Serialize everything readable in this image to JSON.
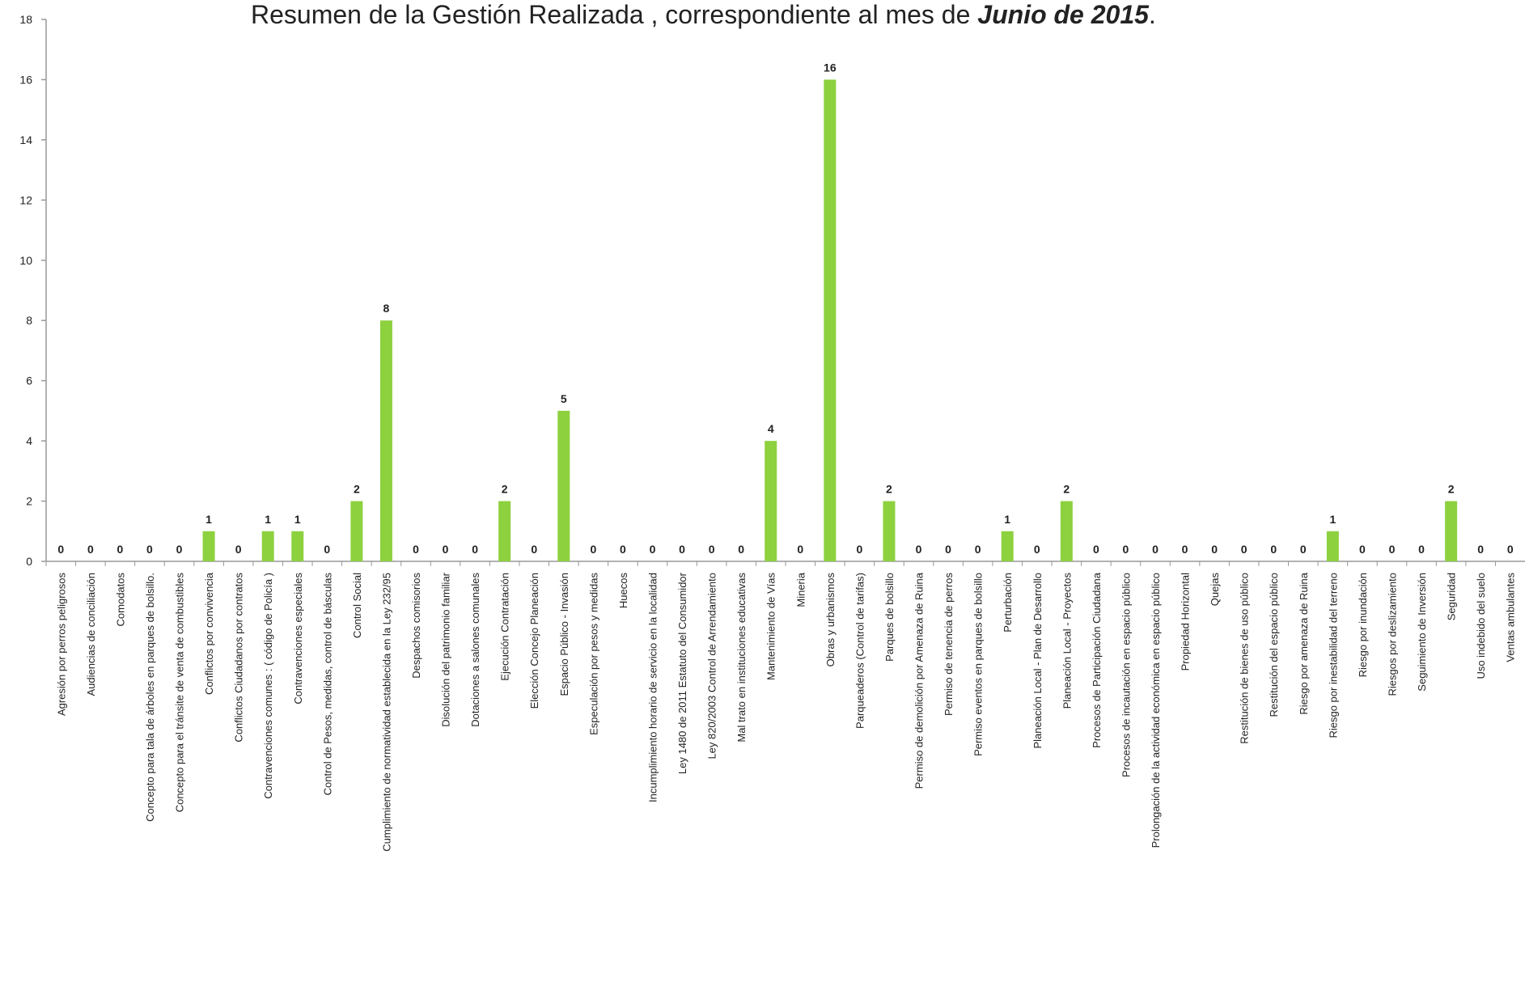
{
  "chart_data": {
    "type": "bar",
    "title": {
      "prefix": "Resumen de  la Gestión Realizada , correspondiente al mes  de ",
      "emphasis": "Junio de 2015",
      "suffix": "."
    },
    "xlabel": "",
    "ylabel": "",
    "ylim": [
      0,
      18
    ],
    "yticks": [
      0,
      2,
      4,
      6,
      8,
      10,
      12,
      14,
      16,
      18
    ],
    "grid": false,
    "legend": "none",
    "bar_color": "#8dd13f",
    "categories": [
      "Agresión por perros peligrosos",
      "Audiencias de conciliación",
      "Comodatos",
      "Concepto para  tala de árboles en parques de bolsillo.",
      "Concepto para el tránsite de venta de combustibles",
      "Conflictos  por convivencia",
      "Conflictos Ciudadanos  por contratos",
      "Contravenciones  comunes : ( código de Policía )",
      "Contravenciones especiales",
      "Control de Pesos, medidas,  control de básculas",
      "Control Social",
      "Cumplimiento de normatividad establecida en  la Ley 232/95",
      "Despachos comisorios",
      "Disolución del patrimonio familiar",
      "Dotaciones a salones comunales",
      "Ejecución Contratación",
      "Elección Concejo Planeación",
      "Espacio Público - Invasión",
      "Especulación por pesos y medidas",
      "Huecos",
      "Incumplimiento horario de servicio en la localidad",
      "Ley 1480 de 2011 Estatuto del Consumidor",
      "Ley 820/2003 Control de Arrendamiento",
      "Mal trato en instituciones educativas",
      "Mantenimiento de  Vías",
      "Mineria",
      "Obras y urbanismos",
      "Parqueaderos (Control de tarifas)",
      "Parques de bolsillo",
      "Permiso  de demolición por Amenaza de Ruina",
      "Permiso de tenencia de perros",
      "Permiso eventos en parques de bolsillo",
      "Perturbación",
      "Planeación Local - Plan de Desarrollo",
      "Planeación Local - Proyectos",
      "Procesos  de  Participación Ciudadana",
      "Procesos de incautación en espacio público",
      "Prolongación de la actividad económica en espacio público",
      "Propiedad Horizontal",
      "Quejas",
      "Restitución de bienes de uso público",
      "Restitución del espacio público",
      "Riesgo  por amenaza de Ruina",
      "Riesgo por inestabilidad del terreno",
      "Riesgo por inundación",
      "Riesgos por deslizamiento",
      "Seguimiento de Inversión",
      "Seguridad",
      "Uso indebido del suelo",
      "Ventas ambulantes"
    ],
    "values": [
      0,
      0,
      0,
      0,
      0,
      1,
      0,
      1,
      1,
      0,
      2,
      8,
      0,
      0,
      0,
      2,
      0,
      5,
      0,
      0,
      0,
      0,
      0,
      0,
      4,
      0,
      16,
      0,
      2,
      0,
      0,
      0,
      1,
      0,
      2,
      0,
      0,
      0,
      0,
      0,
      0,
      0,
      0,
      1,
      0,
      0,
      0,
      2,
      0,
      0
    ]
  }
}
